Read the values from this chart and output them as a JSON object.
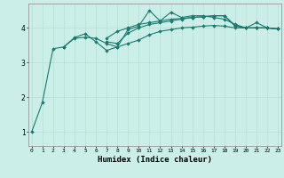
{
  "bg_color": "#cceee8",
  "line_color": "#1a7a6e",
  "marker": "D",
  "markersize": 1.8,
  "linewidth": 0.8,
  "xlabel": "Humidex (Indice chaleur)",
  "xlabel_fontsize": 6.5,
  "yticks": [
    1,
    2,
    3,
    4
  ],
  "xticks": [
    0,
    1,
    2,
    3,
    4,
    5,
    6,
    7,
    8,
    9,
    10,
    11,
    12,
    13,
    14,
    15,
    16,
    17,
    18,
    19,
    20,
    21,
    22,
    23
  ],
  "xlim": [
    -0.3,
    23.3
  ],
  "ylim": [
    0.6,
    4.7
  ],
  "grid_color": "#aaddcc",
  "grid_lw": 0.4,
  "series": [
    [
      1.0,
      1.85,
      3.4,
      3.45,
      3.7,
      3.73,
      3.7,
      3.55,
      3.45,
      3.55,
      3.65,
      3.8,
      3.9,
      3.95,
      4.0,
      4.02,
      4.05,
      4.07,
      4.05,
      4.0,
      4.0,
      4.0,
      4.0,
      3.97
    ],
    [
      null,
      null,
      null,
      3.45,
      3.72,
      3.83,
      3.6,
      3.35,
      3.45,
      3.95,
      4.05,
      4.5,
      4.2,
      4.45,
      4.3,
      4.35,
      4.35,
      4.3,
      4.25,
      4.1,
      4.0,
      4.15,
      4.0,
      3.97
    ],
    [
      null,
      null,
      null,
      null,
      null,
      null,
      null,
      3.6,
      3.55,
      3.85,
      4.0,
      4.1,
      4.15,
      4.2,
      4.25,
      4.3,
      4.32,
      4.35,
      4.35,
      4.05,
      4.0,
      4.0,
      4.0,
      3.97
    ],
    [
      null,
      null,
      null,
      null,
      null,
      null,
      null,
      3.7,
      3.9,
      4.0,
      4.1,
      4.15,
      4.2,
      4.25,
      4.27,
      4.3,
      4.32,
      4.35,
      4.35,
      4.07,
      4.0,
      4.0,
      4.0,
      3.97
    ]
  ]
}
